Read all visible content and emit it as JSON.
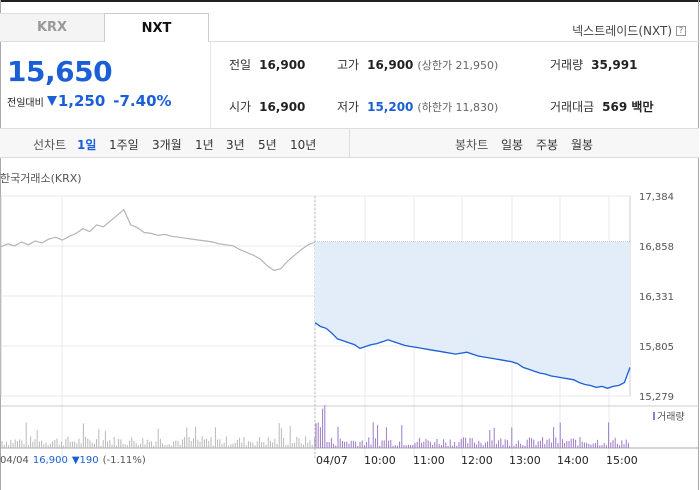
{
  "tabs": {
    "krx": "KRX",
    "nxt": "NXT"
  },
  "nxt_link": "넥스트레이드(NXT)",
  "help_icon": "?",
  "price": {
    "current": "15,650",
    "change_label": "전일대비",
    "change_amount": "1,250",
    "change_percent": "-7.40%",
    "direction_icon": "down-triangle"
  },
  "stats": {
    "prev_close": {
      "label": "전일",
      "value": "16,900"
    },
    "high": {
      "label": "고가",
      "value": "16,900",
      "sub": "(상한가 21,950)"
    },
    "volume": {
      "label": "거래량",
      "value": "35,991"
    },
    "open": {
      "label": "시가",
      "value": "16,900"
    },
    "low": {
      "label": "저가",
      "value": "15,200",
      "sub": "(하한가 11,830)"
    },
    "amount": {
      "label": "거래대금",
      "value": "569 백만"
    }
  },
  "period_bar": {
    "line_label": "선차트",
    "line_options": [
      "1일",
      "1주일",
      "3개월",
      "1년",
      "3년",
      "5년",
      "10년"
    ],
    "active": "1일",
    "candle_label": "봉차트",
    "candle_options": [
      "일봉",
      "주봉",
      "월봉"
    ]
  },
  "exchange_label": "한국거래소(KRX)",
  "colors": {
    "accent": "#1a5fd6",
    "fill": "#e3ecf9",
    "volume_prev": "#b8b8b8",
    "volume_today": "#9b79c4"
  },
  "chart_data": {
    "type": "line",
    "y_ticks": [
      "17,384",
      "16,858",
      "16,331",
      "15,805",
      "15,279"
    ],
    "ylim": [
      15279,
      17384
    ],
    "reference_line": 16900,
    "x_ticks": [
      "04/04",
      "04/07",
      "10:00",
      "11:00",
      "12:00",
      "13:00",
      "14:00",
      "15:00"
    ],
    "volume_legend": "거래량",
    "series": [
      {
        "name": "04/04",
        "values": [
          16850,
          16880,
          16860,
          16900,
          16870,
          16910,
          16890,
          16930,
          16950,
          16920,
          16960,
          16990,
          17040,
          17010,
          17080,
          17060,
          17120,
          17180,
          17240,
          17080,
          17050,
          17000,
          16990,
          16970,
          16980,
          16960,
          16950,
          16940,
          16930,
          16920,
          16910,
          16900,
          16880,
          16870,
          16860,
          16820,
          16790,
          16760,
          16720,
          16650,
          16600,
          16620,
          16700,
          16760,
          16820,
          16870,
          16900
        ]
      },
      {
        "name": "04/07",
        "values": [
          16050,
          16010,
          15990,
          15940,
          15880,
          15860,
          15840,
          15820,
          15780,
          15800,
          15820,
          15830,
          15850,
          15870,
          15850,
          15830,
          15810,
          15800,
          15790,
          15780,
          15770,
          15760,
          15750,
          15740,
          15730,
          15720,
          15730,
          15740,
          15720,
          15700,
          15690,
          15680,
          15670,
          15660,
          15650,
          15640,
          15620,
          15580,
          15560,
          15540,
          15520,
          15510,
          15490,
          15480,
          15470,
          15460,
          15450,
          15420,
          15400,
          15390,
          15370,
          15380,
          15360,
          15380,
          15390,
          15420,
          15580
        ]
      }
    ]
  },
  "footer": {
    "date": "04/04",
    "close": "16,900",
    "change": "▼190",
    "change_pct": "(-1.11%)"
  }
}
